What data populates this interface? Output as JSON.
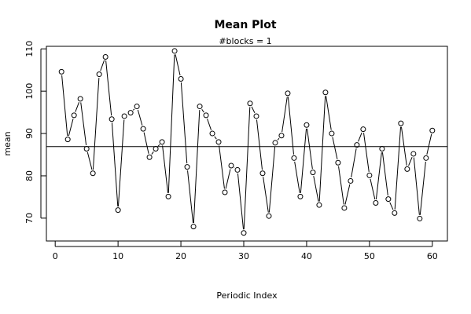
{
  "chart_data": {
    "type": "line",
    "title": "Mean Plot",
    "subtitle": "#blocks =  1",
    "xlabel": "Periodic Index",
    "ylabel": "mean",
    "xlim": [
      -1.4,
      62.4
    ],
    "ylim": [
      64.6,
      110.6
    ],
    "xticks": [
      0,
      10,
      20,
      30,
      40,
      50,
      60
    ],
    "yticks": [
      70,
      80,
      90,
      100,
      110
    ],
    "hline": 86.9,
    "grid": false,
    "x": [
      1,
      2,
      3,
      4,
      5,
      6,
      7,
      8,
      9,
      10,
      11,
      12,
      13,
      14,
      15,
      16,
      17,
      18,
      19,
      20,
      21,
      22,
      23,
      24,
      25,
      26,
      27,
      28,
      29,
      30,
      31,
      32,
      33,
      34,
      35,
      36,
      37,
      38,
      39,
      40,
      41,
      42,
      43,
      44,
      45,
      46,
      47,
      48,
      49,
      50,
      51,
      52,
      53,
      54,
      55,
      56,
      57,
      58,
      59,
      60
    ],
    "values": [
      104.6,
      88.6,
      94.3,
      98.2,
      86.4,
      80.6,
      104.0,
      108.1,
      93.4,
      71.9,
      94.1,
      94.9,
      96.4,
      91.1,
      84.4,
      86.4,
      88.0,
      75.1,
      109.5,
      102.9,
      82.1,
      68.0,
      96.4,
      94.3,
      90.0,
      88.0,
      76.1,
      82.4,
      81.4,
      66.5,
      97.1,
      94.1,
      80.6,
      70.5,
      87.8,
      89.5,
      99.5,
      84.2,
      75.1,
      92.0,
      80.8,
      73.1,
      99.7,
      90.0,
      83.1,
      72.4,
      78.8,
      87.3,
      91.0,
      80.1,
      73.6,
      86.4,
      74.5,
      71.2,
      92.4,
      81.6,
      85.2,
      69.9,
      84.2,
      90.7
    ]
  }
}
